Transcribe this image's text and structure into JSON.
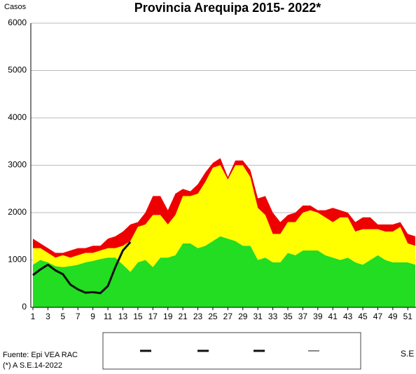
{
  "chart_data": {
    "type": "area",
    "title": "Provincia Arequipa  2015- 2022*",
    "y_label": "Casos",
    "x_label": "S.E",
    "source": "Fuente: Epi VEA RAC",
    "note": "(*) A S.E.14-2022",
    "x": [
      1,
      2,
      3,
      4,
      5,
      6,
      7,
      8,
      9,
      10,
      11,
      12,
      13,
      14,
      15,
      16,
      17,
      18,
      19,
      20,
      21,
      22,
      23,
      24,
      25,
      26,
      27,
      28,
      29,
      30,
      31,
      32,
      33,
      34,
      35,
      36,
      37,
      38,
      39,
      40,
      41,
      42,
      43,
      44,
      45,
      46,
      47,
      48,
      49,
      50,
      51,
      52
    ],
    "xlim": [
      1,
      52
    ],
    "xticks": [
      1,
      3,
      5,
      7,
      9,
      11,
      13,
      15,
      17,
      19,
      21,
      23,
      25,
      27,
      29,
      31,
      33,
      35,
      37,
      39,
      41,
      43,
      45,
      47,
      49,
      51
    ],
    "ylim": [
      0,
      6000
    ],
    "yticks": [
      0,
      1000,
      2000,
      3000,
      4000,
      5000,
      6000
    ],
    "grid": true,
    "series": [
      {
        "kind": "area",
        "color": "#22dd22",
        "values": [
          900,
          1000,
          950,
          870,
          850,
          870,
          900,
          950,
          980,
          1020,
          1050,
          1050,
          900,
          750,
          950,
          1000,
          850,
          1050,
          1050,
          1100,
          1350,
          1350,
          1250,
          1300,
          1400,
          1500,
          1450,
          1400,
          1300,
          1300,
          1000,
          1050,
          950,
          950,
          1150,
          1100,
          1200,
          1200,
          1200,
          1100,
          1050,
          1000,
          1050,
          950,
          900,
          1000,
          1100,
          1000,
          950,
          950,
          950,
          900
        ]
      },
      {
        "kind": "area",
        "color": "#ffff00",
        "values": [
          350,
          250,
          200,
          180,
          250,
          180,
          200,
          200,
          170,
          180,
          200,
          200,
          400,
          650,
          750,
          750,
          1100,
          900,
          700,
          850,
          1000,
          1000,
          1150,
          1350,
          1550,
          1500,
          1250,
          1600,
          1700,
          1450,
          1100,
          900,
          600,
          600,
          650,
          700,
          800,
          850,
          800,
          800,
          750,
          900,
          850,
          650,
          750,
          650,
          550,
          600,
          650,
          750,
          400,
          400
        ]
      },
      {
        "kind": "area",
        "color": "#ee0000",
        "values": [
          200,
          100,
          100,
          100,
          50,
          150,
          150,
          100,
          150,
          100,
          200,
          250,
          300,
          350,
          100,
          250,
          400,
          400,
          300,
          450,
          150,
          100,
          200,
          200,
          100,
          150,
          50,
          100,
          100,
          150,
          200,
          400,
          450,
          250,
          150,
          200,
          150,
          100,
          50,
          150,
          300,
          150,
          100,
          200,
          250,
          250,
          100,
          150,
          150,
          100,
          200,
          200
        ]
      },
      {
        "kind": "line",
        "color": "#111111",
        "values": [
          680,
          800,
          900,
          780,
          700,
          480,
          380,
          310,
          320,
          300,
          450,
          850,
          1200,
          1380,
          null,
          null,
          null,
          null,
          null,
          null,
          null,
          null,
          null,
          null,
          null,
          null,
          null,
          null,
          null,
          null,
          null,
          null,
          null,
          null,
          null,
          null,
          null,
          null,
          null,
          null,
          null,
          null,
          null,
          null,
          null,
          null,
          null,
          null,
          null,
          null,
          null,
          null
        ]
      }
    ]
  }
}
